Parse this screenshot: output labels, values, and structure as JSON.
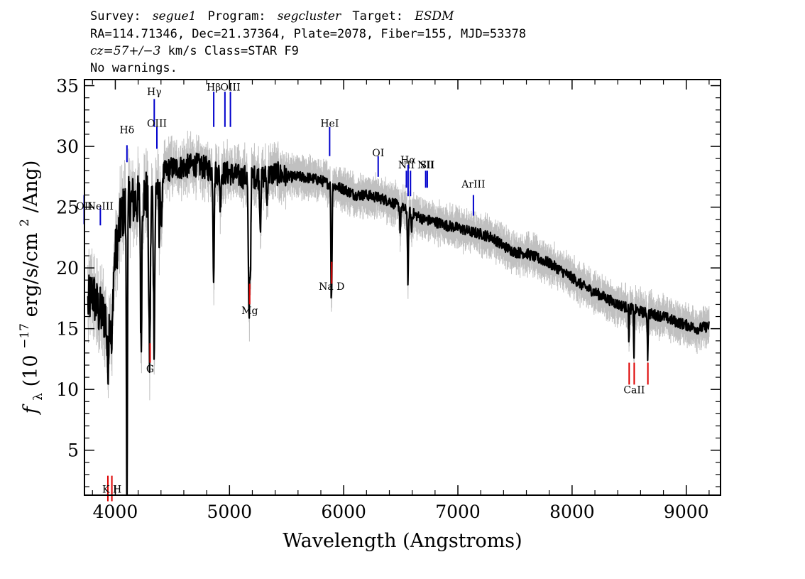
{
  "header": {
    "line1": {
      "survey_label": "Survey:",
      "survey": "segue1",
      "program_label": "Program:",
      "program": "segcluster",
      "target_label": "Target:",
      "target": "ESDM"
    },
    "line2": "RA=114.71346, Dec=21.37364, Plate=2078, Fiber=155, MJD=53378",
    "line3": {
      "cz": "cz=57+/−3",
      "rest": " km/s Class=STAR F9"
    },
    "line4": "No warnings."
  },
  "chart_data": {
    "type": "line",
    "xlabel": "Wavelength (Angstroms)",
    "ylabel": {
      "prefix": "f",
      "sub": "λ",
      "mid": " (10",
      "exp1": "−17",
      "mid2": " erg/s/cm",
      "exp2": "2",
      "suffix": "/Ang)"
    },
    "xlim": [
      3730,
      9300
    ],
    "ylim": [
      1.3,
      35.5
    ],
    "x_ticks": [
      {
        "value": 4000,
        "label": "4000"
      },
      {
        "value": 5000,
        "label": "5000"
      },
      {
        "value": 6000,
        "label": "6000"
      },
      {
        "value": 7000,
        "label": "7000"
      },
      {
        "value": 8000,
        "label": "8000"
      },
      {
        "value": 9000,
        "label": "9000"
      }
    ],
    "y_ticks": [
      {
        "value": 5,
        "label": "5"
      },
      {
        "value": 10,
        "label": "10"
      },
      {
        "value": 15,
        "label": "15"
      },
      {
        "value": 20,
        "label": "20"
      },
      {
        "value": 25,
        "label": "25"
      },
      {
        "value": 30,
        "label": "30"
      },
      {
        "value": 35,
        "label": "35"
      }
    ],
    "colors": {
      "flux": "#000000",
      "noise": "#c0c0c0",
      "emission": "#0000cc",
      "absorption": "#dd0000"
    },
    "continuum": [
      [
        3760,
        17
      ],
      [
        3800,
        18
      ],
      [
        3850,
        16.5
      ],
      [
        3900,
        16
      ],
      [
        3950,
        17
      ],
      [
        4000,
        21
      ],
      [
        4050,
        24
      ],
      [
        4100,
        25.5
      ],
      [
        4150,
        25.5
      ],
      [
        4200,
        25.5
      ],
      [
        4250,
        26
      ],
      [
        4300,
        26
      ],
      [
        4350,
        26.5
      ],
      [
        4400,
        27.5
      ],
      [
        4450,
        28
      ],
      [
        4500,
        28.2
      ],
      [
        4600,
        28.3
      ],
      [
        4700,
        28.5
      ],
      [
        4800,
        28.2
      ],
      [
        4900,
        27.8
      ],
      [
        5000,
        27.8
      ],
      [
        5100,
        27.5
      ],
      [
        5200,
        27.5
      ],
      [
        5300,
        27.5
      ],
      [
        5400,
        27.8
      ],
      [
        5500,
        27.5
      ],
      [
        5600,
        27.5
      ],
      [
        5700,
        27.4
      ],
      [
        5800,
        27.2
      ],
      [
        5900,
        26.8
      ],
      [
        6000,
        26.5
      ],
      [
        6100,
        26
      ],
      [
        6200,
        26
      ],
      [
        6300,
        25.8
      ],
      [
        6400,
        25.5
      ],
      [
        6500,
        25
      ],
      [
        6600,
        24.5
      ],
      [
        6700,
        24
      ],
      [
        6800,
        23.8
      ],
      [
        6900,
        23.5
      ],
      [
        7000,
        23.3
      ],
      [
        7100,
        23
      ],
      [
        7200,
        22.8
      ],
      [
        7300,
        22.5
      ],
      [
        7400,
        21.8
      ],
      [
        7500,
        21.3
      ],
      [
        7600,
        21.2
      ],
      [
        7700,
        20.8
      ],
      [
        7800,
        20.4
      ],
      [
        7900,
        19.8
      ],
      [
        8000,
        19.2
      ],
      [
        8100,
        18.5
      ],
      [
        8200,
        18
      ],
      [
        8300,
        17.5
      ],
      [
        8400,
        17
      ],
      [
        8500,
        16.7
      ],
      [
        8600,
        16.4
      ],
      [
        8700,
        16.2
      ],
      [
        8800,
        16
      ],
      [
        8900,
        15.6
      ],
      [
        9000,
        15.3
      ],
      [
        9100,
        15
      ],
      [
        9200,
        15.2
      ]
    ],
    "absorption_features": [
      [
        3934,
        4.5,
        8
      ],
      [
        3969,
        5.5,
        7
      ],
      [
        4102,
        16,
        5
      ],
      [
        4101,
        9,
        4
      ],
      [
        4226,
        13,
        5
      ],
      [
        4300,
        13.5,
        7
      ],
      [
        4340,
        12,
        6
      ],
      [
        4384,
        6,
        4
      ],
      [
        4405,
        5,
        4
      ],
      [
        4861,
        8.5,
        5
      ],
      [
        4920,
        3,
        4
      ],
      [
        5167,
        7,
        5
      ],
      [
        5173,
        7.5,
        4
      ],
      [
        5183,
        8,
        4
      ],
      [
        5270,
        4,
        5
      ],
      [
        5328,
        2.5,
        4
      ],
      [
        5890,
        8,
        3
      ],
      [
        5896,
        7,
        3
      ],
      [
        6495,
        2,
        4
      ],
      [
        6563,
        6,
        4
      ],
      [
        6594,
        1.5,
        4
      ],
      [
        8498,
        2.5,
        3
      ],
      [
        8542,
        3.8,
        3
      ],
      [
        8662,
        3.6,
        3
      ]
    ],
    "emission_lines": [
      {
        "wave": 3727,
        "label": "OII",
        "y_top": 26,
        "y_bottom": 23.6,
        "label_y": 24.8
      },
      {
        "wave": 3869,
        "label": "NeIII",
        "y_top": 25,
        "y_bottom": 23.5,
        "label_y": 24.8
      },
      {
        "wave": 4102,
        "label": "Hδ",
        "y_top": 30.1,
        "y_bottom": 28.7,
        "label_y": 31.1
      },
      {
        "wave": 4341,
        "label": "Hγ",
        "y_top": 33.9,
        "y_bottom": 31.6,
        "label_y": 34.2
      },
      {
        "wave": 4364,
        "label": "OIII",
        "y_top": 31.6,
        "y_bottom": 29.8,
        "label_y": 31.6
      },
      {
        "wave": 4862,
        "label": "Hβ",
        "y_top": 34.5,
        "y_bottom": 31.6,
        "label_y": 34.6
      },
      {
        "wave": 4960,
        "label": "",
        "y_top": 34.5,
        "y_bottom": 31.6,
        "label_y": 34.6
      },
      {
        "wave": 5008,
        "label": "OIII",
        "y_top": 34.5,
        "y_bottom": 31.6,
        "label_y": 34.6
      },
      {
        "wave": 5877,
        "label": "HeI",
        "y_top": 31.6,
        "y_bottom": 29.2,
        "label_y": 31.6
      },
      {
        "wave": 6302,
        "label": "OI",
        "y_top": 29.2,
        "y_bottom": 27.5,
        "label_y": 29.2
      },
      {
        "wave": 6549,
        "label": "NII",
        "y_top": 28,
        "y_bottom": 26.6,
        "label_y": 28.2
      },
      {
        "wave": 6564,
        "label": "Hα",
        "y_top": 28.5,
        "y_bottom": 25.9,
        "label_y": 28.6
      },
      {
        "wave": 6585,
        "label": "",
        "y_top": 28,
        "y_bottom": 25.9,
        "label_y": 28.2
      },
      {
        "wave": 6718,
        "label": "NII",
        "y_top": 28,
        "y_bottom": 26.6,
        "label_y": 28.2
      },
      {
        "wave": 6732,
        "label": "SII",
        "y_top": 28,
        "y_bottom": 26.6,
        "label_y": 28.2
      },
      {
        "wave": 7136,
        "label": "ArIII",
        "y_top": 26,
        "y_bottom": 24.3,
        "label_y": 26.6
      }
    ],
    "absorption_lines": [
      {
        "wave": 3935,
        "label": "",
        "y_top": 2.9,
        "y_bottom": 0.8,
        "label_y": 1.5
      },
      {
        "wave": 3970,
        "label": "K H",
        "y_top": 2.9,
        "y_bottom": 0.8,
        "label_y": 1.5
      },
      {
        "wave": 4305,
        "label": "G",
        "y_top": 13.8,
        "y_bottom": 12.2,
        "label_y": 11.4
      },
      {
        "wave": 5177,
        "label": "Mg",
        "y_top": 18.7,
        "y_bottom": 17,
        "label_y": 16.2
      },
      {
        "wave": 5895,
        "label": "Na D",
        "y_top": 20.5,
        "y_bottom": 18.7,
        "label_y": 18.2
      },
      {
        "wave": 8500,
        "label": "",
        "y_top": 12.2,
        "y_bottom": 10.4,
        "label_y": 9.7
      },
      {
        "wave": 8544,
        "label": "CaII",
        "y_top": 12.2,
        "y_bottom": 10.4,
        "label_y": 9.7
      },
      {
        "wave": 8664,
        "label": "",
        "y_top": 12.2,
        "y_bottom": 10.4,
        "label_y": 9.7
      }
    ]
  }
}
